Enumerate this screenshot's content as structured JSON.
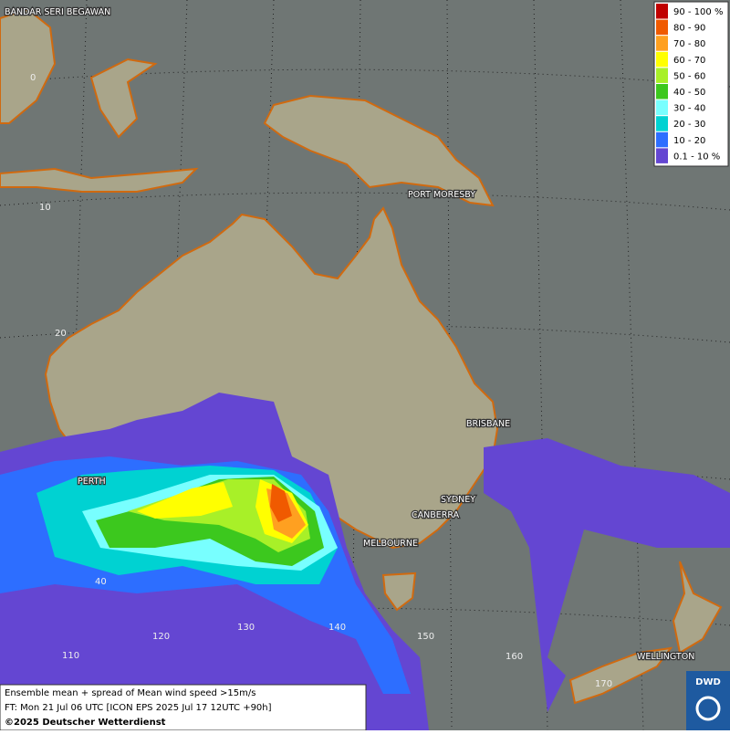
{
  "legend": {
    "items": [
      {
        "label": "90 - 100 %",
        "color": "#c00000"
      },
      {
        "label": "80 - 90",
        "color": "#f05a00"
      },
      {
        "label": "70 - 80",
        "color": "#ffa020"
      },
      {
        "label": "60 - 70",
        "color": "#ffff00"
      },
      {
        "label": "50 - 60",
        "color": "#a8f028"
      },
      {
        "label": "40 - 50",
        "color": "#3cc81e"
      },
      {
        "label": "30 - 40",
        "color": "#78ffff"
      },
      {
        "label": "20 - 30",
        "color": "#00d2d2"
      },
      {
        "label": "10 - 20",
        "color": "#2d6eff"
      },
      {
        "label": "0.1 - 10 %",
        "color": "#6446d2"
      }
    ]
  },
  "cities": [
    "BANDAR SERI BEGAWAN",
    "PORT MORESBY",
    "BRISBANE",
    "PERTH",
    "SYDNEY",
    "CANBERRA",
    "MELBOURNE",
    "WELLINGTON"
  ],
  "graticule_labels": [
    "0",
    "10",
    "20",
    "40",
    "110",
    "120",
    "130",
    "140",
    "150",
    "160",
    "170"
  ],
  "caption": {
    "line1": "Ensemble mean + spread of Mean wind speed >15m/s",
    "line2": "FT: Mon 21 Jul 06 UTC [ICON EPS 2025 Jul 17 12UTC +90h]",
    "line3": "©2025 Deutscher Wetterdienst"
  },
  "logo": "DWD"
}
